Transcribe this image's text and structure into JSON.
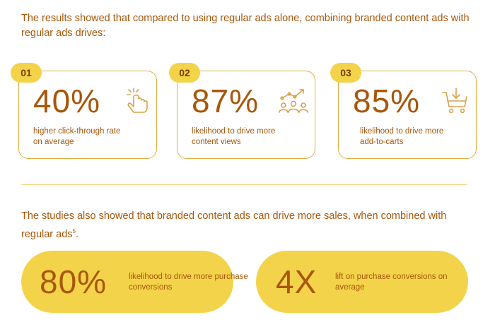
{
  "intro_text": "The results showed that compared to using regular ads alone, combining branded content ads with regular ads drives:",
  "cards": [
    {
      "number": "01",
      "stat": "40%",
      "description": "higher click-through rate on average",
      "icon": "pointer-click-icon"
    },
    {
      "number": "02",
      "stat": "87%",
      "description": "likelihood to drive more content views",
      "icon": "audience-trend-icon"
    },
    {
      "number": "03",
      "stat": "85%",
      "description": "likelihood to drive more add-to-carts",
      "icon": "add-to-cart-icon"
    }
  ],
  "studies_text": "The studies also showed that branded content ads can drive more sales, when combined with regular ads",
  "studies_footnote": "5",
  "pills": [
    {
      "stat": "80%",
      "description": "likelihood to drive more purchase conversions"
    },
    {
      "stat": "4X",
      "description": "lift on purchase conversions on average"
    }
  ],
  "colors": {
    "accent": "#a8570b",
    "highlight": "#f3d34a",
    "border": "#e0ad43"
  }
}
